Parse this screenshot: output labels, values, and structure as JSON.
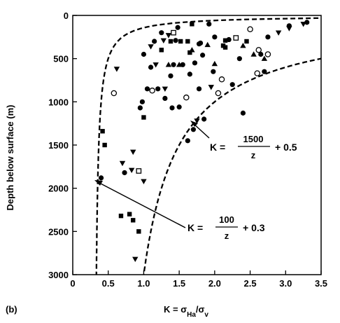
{
  "panel_label": "(b)",
  "chart_data": {
    "type": "scatter",
    "xlabel": "K = σ",
    "xlabel_sub": "Ha",
    "xlabel_mid": "/σ",
    "xlabel_sub2": "v",
    "ylabel": "Depth below surface (m)",
    "xlim": [
      0,
      3.5
    ],
    "ylim": [
      0,
      3000
    ],
    "y_inverted": true,
    "x_ticks": [
      0,
      0.5,
      1.0,
      1.5,
      2.0,
      2.5,
      3.0,
      3.5
    ],
    "x_tick_labels": [
      "0",
      "0.5",
      "1.0",
      "1.5",
      "2.0",
      "2.5",
      "3.0",
      "3.5"
    ],
    "y_ticks": [
      0,
      500,
      1000,
      1500,
      2000,
      2500,
      3000
    ],
    "y_tick_labels": [
      "0",
      "500",
      "1000",
      "1500",
      "2000",
      "2500",
      "3000"
    ],
    "grid": false,
    "marker_styles": {
      "filled-circle": "●",
      "open-circle": "○",
      "filled-square": "■",
      "open-square": "□",
      "filled-triangle-up": "▲",
      "filled-triangle-down": "▼"
    },
    "points": [
      {
        "x": 0.4,
        "y": 1880,
        "m": "filled-circle"
      },
      {
        "x": 0.42,
        "y": 1340,
        "m": "filled-square"
      },
      {
        "x": 0.45,
        "y": 1500,
        "m": "filled-square"
      },
      {
        "x": 0.58,
        "y": 900,
        "m": "open-circle"
      },
      {
        "x": 0.62,
        "y": 620,
        "m": "filled-triangle-down"
      },
      {
        "x": 0.7,
        "y": 1710,
        "m": "filled-triangle-down"
      },
      {
        "x": 0.68,
        "y": 2320,
        "m": "filled-square"
      },
      {
        "x": 0.73,
        "y": 1820,
        "m": "filled-circle"
      },
      {
        "x": 0.8,
        "y": 2300,
        "m": "filled-square"
      },
      {
        "x": 0.85,
        "y": 2370,
        "m": "filled-square"
      },
      {
        "x": 0.83,
        "y": 1790,
        "m": "filled-triangle-down"
      },
      {
        "x": 0.88,
        "y": 2820,
        "m": "filled-triangle-down"
      },
      {
        "x": 0.85,
        "y": 1580,
        "m": "filled-triangle-down"
      },
      {
        "x": 0.93,
        "y": 1800,
        "m": "open-square"
      },
      {
        "x": 0.93,
        "y": 2500,
        "m": "filled-square"
      },
      {
        "x": 1.0,
        "y": 1920,
        "m": "filled-triangle-down"
      },
      {
        "x": 0.95,
        "y": 1070,
        "m": "filled-circle"
      },
      {
        "x": 0.98,
        "y": 1000,
        "m": "filled-circle"
      },
      {
        "x": 1.0,
        "y": 1180,
        "m": "filled-square"
      },
      {
        "x": 1.0,
        "y": 450,
        "m": "filled-circle"
      },
      {
        "x": 1.05,
        "y": 850,
        "m": "filled-circle"
      },
      {
        "x": 1.1,
        "y": 360,
        "m": "filled-triangle-down"
      },
      {
        "x": 1.1,
        "y": 600,
        "m": "filled-circle"
      },
      {
        "x": 1.12,
        "y": 870,
        "m": "open-circle"
      },
      {
        "x": 1.15,
        "y": 300,
        "m": "filled-circle"
      },
      {
        "x": 1.17,
        "y": 570,
        "m": "filled-triangle-down"
      },
      {
        "x": 1.2,
        "y": 850,
        "m": "filled-circle"
      },
      {
        "x": 1.25,
        "y": 200,
        "m": "filled-circle"
      },
      {
        "x": 1.25,
        "y": 400,
        "m": "filled-square"
      },
      {
        "x": 1.28,
        "y": 290,
        "m": "filled-triangle-down"
      },
      {
        "x": 1.3,
        "y": 850,
        "m": "filled-triangle-down"
      },
      {
        "x": 1.3,
        "y": 960,
        "m": "filled-circle"
      },
      {
        "x": 1.35,
        "y": 230,
        "m": "filled-triangle-down"
      },
      {
        "x": 1.35,
        "y": 570,
        "m": "filled-triangle-up"
      },
      {
        "x": 1.38,
        "y": 300,
        "m": "filled-square"
      },
      {
        "x": 1.38,
        "y": 700,
        "m": "filled-circle"
      },
      {
        "x": 1.4,
        "y": 1070,
        "m": "filled-circle"
      },
      {
        "x": 1.42,
        "y": 200,
        "m": "open-square"
      },
      {
        "x": 1.42,
        "y": 570,
        "m": "filled-circle"
      },
      {
        "x": 1.45,
        "y": 290,
        "m": "filled-circle"
      },
      {
        "x": 1.48,
        "y": 140,
        "m": "filled-circle"
      },
      {
        "x": 1.5,
        "y": 570,
        "m": "filled-triangle-up"
      },
      {
        "x": 1.52,
        "y": 300,
        "m": "filled-square"
      },
      {
        "x": 1.5,
        "y": 1060,
        "m": "filled-circle"
      },
      {
        "x": 1.55,
        "y": 570,
        "m": "filled-circle"
      },
      {
        "x": 1.6,
        "y": 950,
        "m": "open-circle"
      },
      {
        "x": 1.62,
        "y": 300,
        "m": "filled-square"
      },
      {
        "x": 1.62,
        "y": 1450,
        "m": "filled-circle"
      },
      {
        "x": 1.65,
        "y": 430,
        "m": "filled-square"
      },
      {
        "x": 1.65,
        "y": 680,
        "m": "filled-circle"
      },
      {
        "x": 1.68,
        "y": 100,
        "m": "filled-square"
      },
      {
        "x": 1.68,
        "y": 400,
        "m": "filled-triangle-up"
      },
      {
        "x": 1.7,
        "y": 1320,
        "m": "filled-circle"
      },
      {
        "x": 1.72,
        "y": 550,
        "m": "filled-circle"
      },
      {
        "x": 1.75,
        "y": 1220,
        "m": "filled-triangle-down"
      },
      {
        "x": 1.78,
        "y": 850,
        "m": "filled-circle"
      },
      {
        "x": 1.78,
        "y": 330,
        "m": "filled-circle"
      },
      {
        "x": 1.8,
        "y": 320,
        "m": "filled-circle"
      },
      {
        "x": 1.83,
        "y": 460,
        "m": "filled-circle"
      },
      {
        "x": 1.85,
        "y": 1200,
        "m": "filled-circle"
      },
      {
        "x": 1.9,
        "y": 340,
        "m": "filled-triangle-up"
      },
      {
        "x": 1.92,
        "y": 100,
        "m": "filled-circle"
      },
      {
        "x": 1.95,
        "y": 830,
        "m": "filled-triangle-down"
      },
      {
        "x": 1.98,
        "y": 650,
        "m": "filled-circle"
      },
      {
        "x": 2.0,
        "y": 560,
        "m": "filled-triangle-up"
      },
      {
        "x": 2.0,
        "y": 250,
        "m": "filled-circle"
      },
      {
        "x": 2.05,
        "y": 900,
        "m": "open-circle"
      },
      {
        "x": 2.1,
        "y": 740,
        "m": "open-circle"
      },
      {
        "x": 2.12,
        "y": 350,
        "m": "filled-square"
      },
      {
        "x": 2.15,
        "y": 370,
        "m": "filled-square"
      },
      {
        "x": 2.15,
        "y": 290,
        "m": "filled-square"
      },
      {
        "x": 2.2,
        "y": 280,
        "m": "filled-circle"
      },
      {
        "x": 2.25,
        "y": 800,
        "m": "filled-circle"
      },
      {
        "x": 2.3,
        "y": 260,
        "m": "open-square"
      },
      {
        "x": 2.35,
        "y": 500,
        "m": "filled-circle"
      },
      {
        "x": 2.4,
        "y": 350,
        "m": "filled-triangle-up"
      },
      {
        "x": 2.4,
        "y": 1130,
        "m": "filled-circle"
      },
      {
        "x": 2.45,
        "y": 300,
        "m": "filled-square"
      },
      {
        "x": 2.5,
        "y": 160,
        "m": "open-circle"
      },
      {
        "x": 2.55,
        "y": 450,
        "m": "filled-triangle-up"
      },
      {
        "x": 2.6,
        "y": 670,
        "m": "open-circle"
      },
      {
        "x": 2.62,
        "y": 400,
        "m": "open-circle"
      },
      {
        "x": 2.65,
        "y": 450,
        "m": "filled-circle"
      },
      {
        "x": 2.7,
        "y": 500,
        "m": "filled-triangle-up"
      },
      {
        "x": 2.7,
        "y": 650,
        "m": "filled-circle"
      },
      {
        "x": 2.75,
        "y": 250,
        "m": "filled-circle"
      },
      {
        "x": 2.75,
        "y": 450,
        "m": "open-circle"
      },
      {
        "x": 2.9,
        "y": 200,
        "m": "filled-triangle-down"
      },
      {
        "x": 3.05,
        "y": 120,
        "m": "filled-circle"
      },
      {
        "x": 3.05,
        "y": 150,
        "m": "filled-triangle-down"
      },
      {
        "x": 3.25,
        "y": 100,
        "m": "filled-triangle-down"
      },
      {
        "x": 3.3,
        "y": 80,
        "m": "filled-circle"
      }
    ],
    "curves": [
      {
        "name": "lower-bound",
        "a": 100,
        "b": 0.3,
        "style": "dashed"
      },
      {
        "name": "upper-bound",
        "a": 1500,
        "b": 0.5,
        "style": "dashed"
      }
    ],
    "annotations": [
      {
        "id": "upper",
        "lhs": "K =",
        "numerator": "1500",
        "denominator": "z",
        "rhs": "+ 0.5"
      },
      {
        "id": "lower",
        "lhs": "K =",
        "numerator": "100",
        "denominator": "z",
        "rhs": "+ 0.3"
      }
    ]
  }
}
